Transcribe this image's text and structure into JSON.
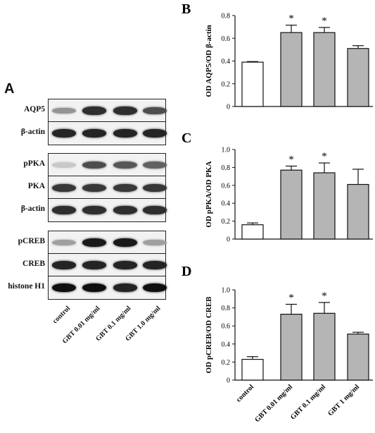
{
  "panel_a": {
    "letter": "A",
    "lanes": [
      "control",
      "GBT 0.01 mg/ml",
      "GBT 0.1 mg/ml",
      "GBT 1.0 mg/ml"
    ],
    "blots": [
      {
        "label": "AQP5",
        "intensities": [
          0.35,
          0.85,
          0.85,
          0.7
        ]
      },
      {
        "label": "β-actin",
        "intensities": [
          0.9,
          0.9,
          0.9,
          0.9
        ]
      },
      {
        "label": "pPKA",
        "intensities": [
          0.1,
          0.7,
          0.65,
          0.6
        ]
      },
      {
        "label": "PKA",
        "intensities": [
          0.8,
          0.8,
          0.8,
          0.8
        ]
      },
      {
        "label": "β-actin",
        "intensities": [
          0.85,
          0.85,
          0.85,
          0.85
        ]
      },
      {
        "label": "pCREB",
        "intensities": [
          0.3,
          0.95,
          0.95,
          0.3
        ]
      },
      {
        "label": "CREB",
        "intensities": [
          0.9,
          0.9,
          0.9,
          0.9
        ]
      },
      {
        "label": "histone H1",
        "intensities": [
          1.0,
          1.0,
          0.9,
          1.0
        ]
      }
    ]
  },
  "chart_data": [
    {
      "panel": "B",
      "type": "bar",
      "ylabel": "OD AQP5/OD β-actin",
      "ylim": [
        0,
        0.8
      ],
      "yticks": [
        "0",
        "0.2",
        "0.4",
        "0.6",
        "0.8"
      ],
      "categories": [
        "control",
        "GBT 0.01 mg/ml",
        "GBT 0.1 mg/ml",
        "GBT 1 mg/ml"
      ],
      "values": [
        0.39,
        0.65,
        0.65,
        0.51
      ],
      "errors": [
        0.005,
        0.065,
        0.045,
        0.025
      ],
      "significance": [
        "",
        "*",
        "*",
        ""
      ],
      "fill": [
        "#ffffff",
        "#b5b5b5",
        "#b5b5b5",
        "#b5b5b5"
      ]
    },
    {
      "panel": "C",
      "type": "bar",
      "ylabel": "OD pPKA/OD PKA",
      "ylim": [
        0,
        1.0
      ],
      "yticks": [
        "0",
        "0.2",
        "0.4",
        "0.6",
        "0.8",
        "1.0"
      ],
      "categories": [
        "control",
        "GBT 0.01 mg/ml",
        "GBT 0.1 mg/ml",
        "GBT 1 mg/ml"
      ],
      "values": [
        0.16,
        0.77,
        0.74,
        0.61
      ],
      "errors": [
        0.02,
        0.045,
        0.11,
        0.17
      ],
      "significance": [
        "",
        "*",
        "*",
        ""
      ],
      "fill": [
        "#ffffff",
        "#b5b5b5",
        "#b5b5b5",
        "#b5b5b5"
      ]
    },
    {
      "panel": "D",
      "type": "bar",
      "ylabel": "OD pCREB/OD CREB",
      "ylim": [
        0,
        1.0
      ],
      "yticks": [
        "0",
        "0.2",
        "0.4",
        "0.6",
        "0.8",
        "1.0"
      ],
      "categories": [
        "control",
        "GBT 0.01 mg/ml",
        "GBT 0.1 mg/ml",
        "GBT 1 mg/ml"
      ],
      "values": [
        0.23,
        0.73,
        0.74,
        0.51
      ],
      "errors": [
        0.03,
        0.11,
        0.12,
        0.02
      ],
      "significance": [
        "",
        "*",
        "*",
        ""
      ],
      "fill": [
        "#ffffff",
        "#b5b5b5",
        "#b5b5b5",
        "#b5b5b5"
      ]
    }
  ]
}
